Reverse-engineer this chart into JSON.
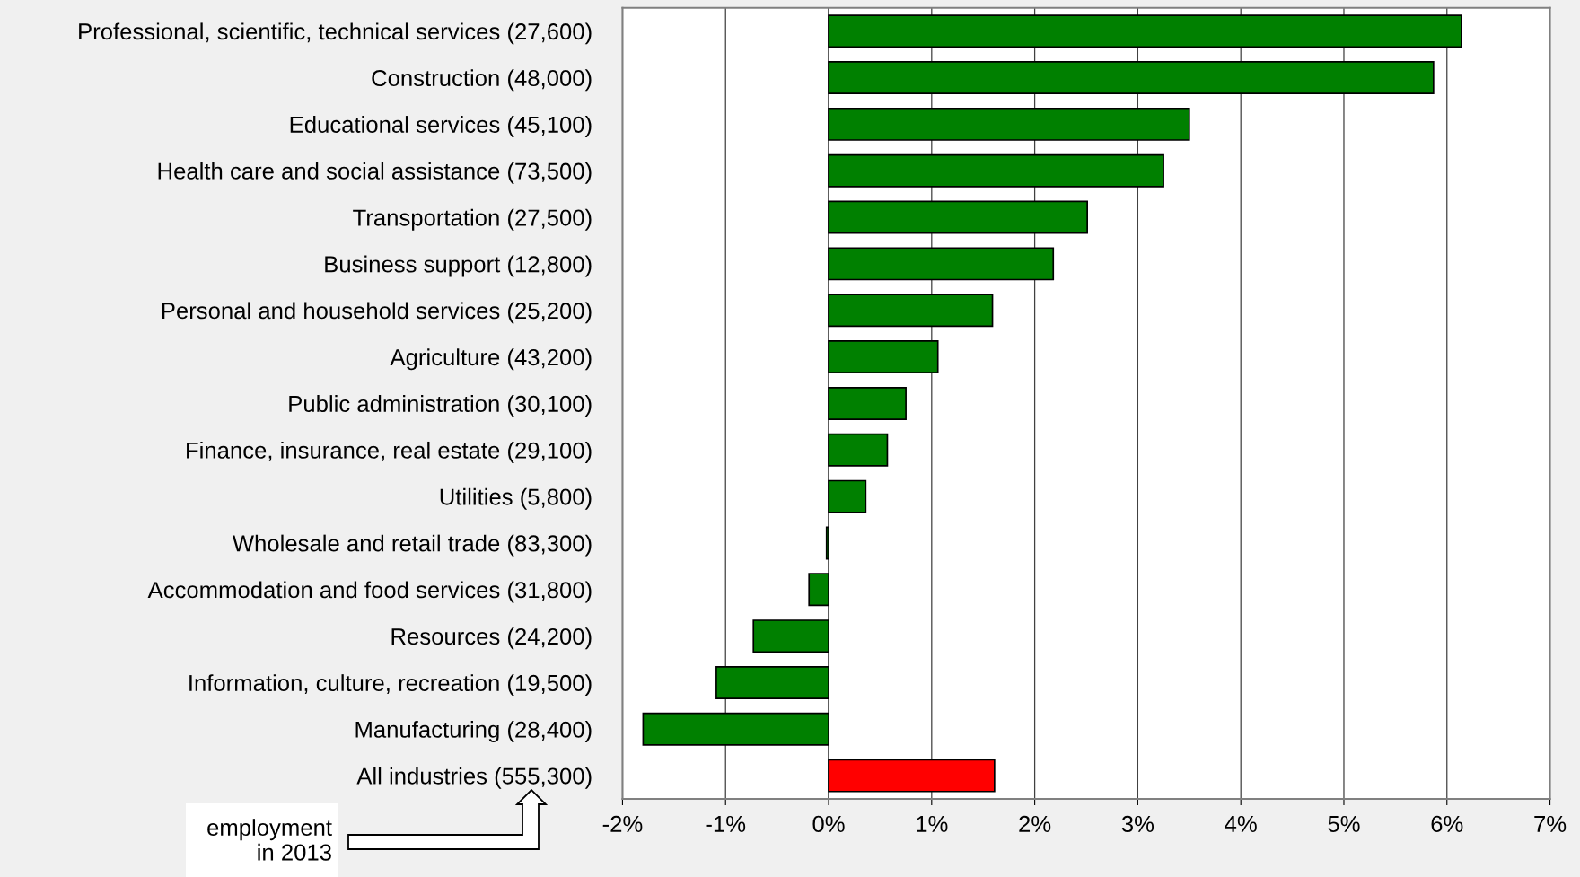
{
  "chart_data": {
    "type": "bar",
    "orientation": "horizontal",
    "categories": [
      "Professional, scientific, technical services (27,600)",
      "Construction (48,000)",
      "Educational services (45,100)",
      "Health care and social assistance (73,500)",
      "Transportation (27,500)",
      "Business support (12,800)",
      "Personal and household services (25,200)",
      "Agriculture (43,200)",
      "Public administration (30,100)",
      "Finance, insurance, real estate (29,100)",
      "Utilities (5,800)",
      "Wholesale and retail trade (83,300)",
      "Accommodation and food services (31,800)",
      "Resources (24,200)",
      "Information, culture, recreation (19,500)",
      "Manufacturing (28,400)",
      "All industries (555,300)"
    ],
    "values": [
      6.14,
      5.87,
      3.5,
      3.25,
      2.51,
      2.18,
      1.59,
      1.06,
      0.75,
      0.57,
      0.36,
      -0.02,
      -0.19,
      -0.73,
      -1.09,
      -1.8,
      1.61
    ],
    "colors": [
      "#008000",
      "#008000",
      "#008000",
      "#008000",
      "#008000",
      "#008000",
      "#008000",
      "#008000",
      "#008000",
      "#008000",
      "#008000",
      "#008000",
      "#008000",
      "#008000",
      "#008000",
      "#008000",
      "#ff0000"
    ],
    "xlim": [
      -2,
      7
    ],
    "xticks": [
      {
        "value": -2,
        "label": "-2%"
      },
      {
        "value": -1,
        "label": "-1%"
      },
      {
        "value": 0,
        "label": "0%"
      },
      {
        "value": 1,
        "label": "1%"
      },
      {
        "value": 2,
        "label": "2%"
      },
      {
        "value": 3,
        "label": "3%"
      },
      {
        "value": 4,
        "label": "4%"
      },
      {
        "value": 5,
        "label": "5%"
      },
      {
        "value": 6,
        "label": "6%"
      },
      {
        "value": 7,
        "label": "7%"
      }
    ],
    "grid": "x",
    "legend": false,
    "annotations": [
      "employment\nin 2013"
    ]
  }
}
